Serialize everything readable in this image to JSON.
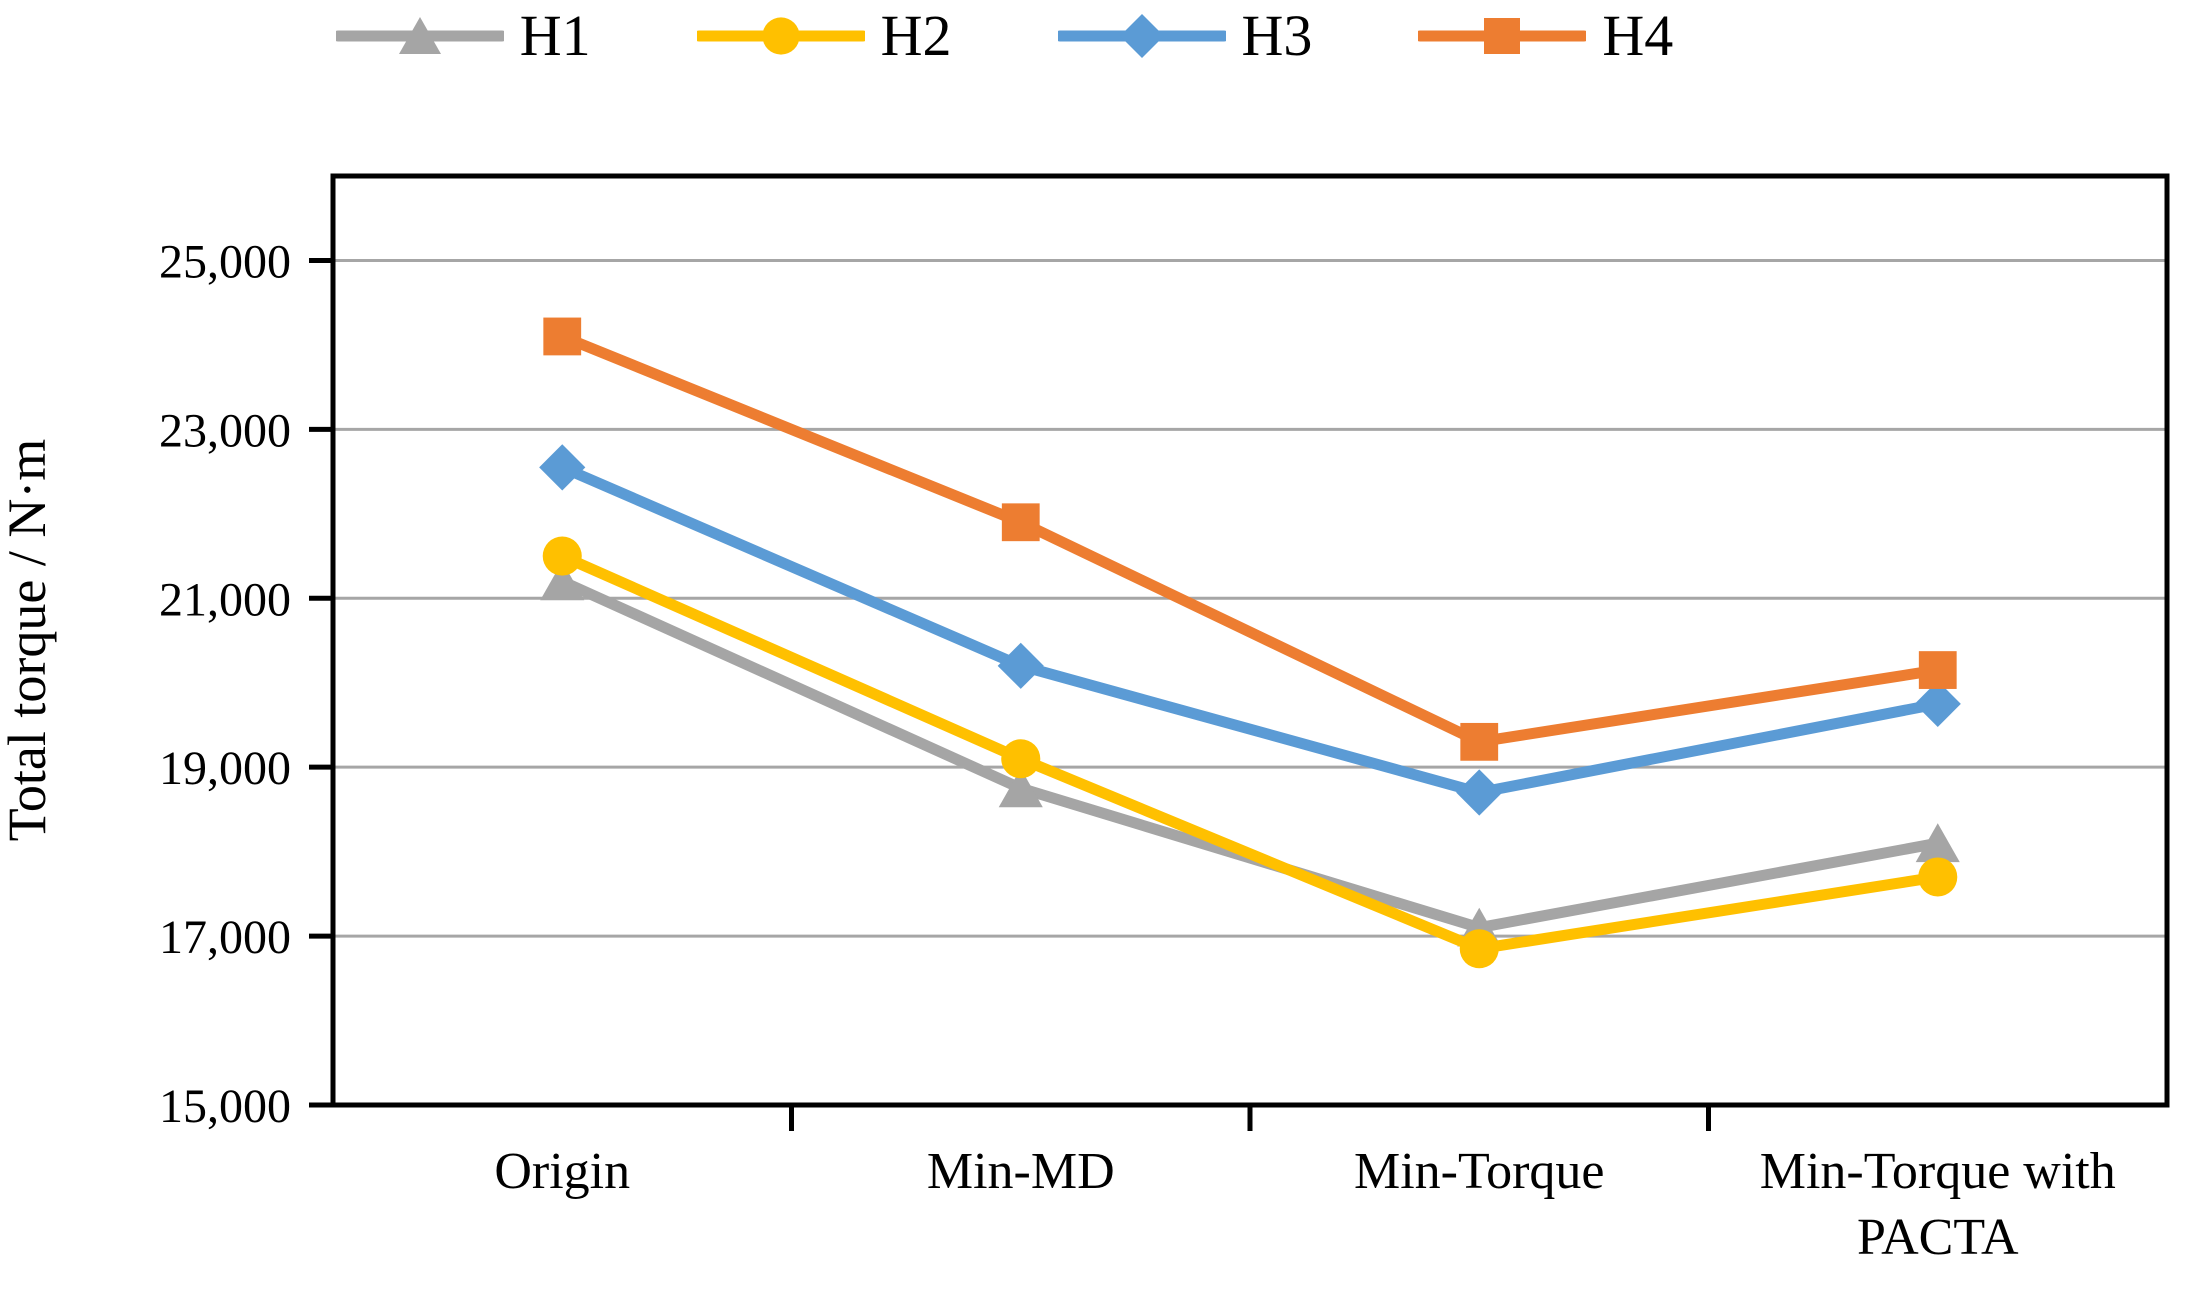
{
  "chart_data": {
    "type": "line",
    "title": "",
    "ylabel": "Total torque / N·m",
    "xlabel": "",
    "categories": [
      "Origin",
      "Min-MD",
      "Min-Torque",
      "Min-Torque with PACTA"
    ],
    "category_label_lines": [
      [
        "Origin"
      ],
      [
        "Min-MD"
      ],
      [
        "Min-Torque"
      ],
      [
        "Min-Torque with",
        "PACTA"
      ]
    ],
    "series": [
      {
        "name": "H1",
        "marker": "triangle",
        "color": "#A5A5A5",
        "values": [
          21200,
          18750,
          17100,
          18100
        ]
      },
      {
        "name": "H2",
        "marker": "circle",
        "color": "#FFC000",
        "values": [
          21500,
          19100,
          16850,
          17700
        ]
      },
      {
        "name": "H3",
        "marker": "diamond",
        "color": "#5B9BD5",
        "values": [
          22550,
          20200,
          18700,
          19750
        ]
      },
      {
        "name": "H4",
        "marker": "square",
        "color": "#ED7D31",
        "values": [
          24100,
          21900,
          19300,
          20150
        ]
      }
    ],
    "ylim": [
      15000,
      26000
    ],
    "yticks": [
      15000,
      17000,
      19000,
      21000,
      23000,
      25000
    ],
    "ytick_labels": [
      "15,000",
      "17,000",
      "19,000",
      "21,000",
      "23,000",
      "25,000"
    ],
    "grid": true,
    "legend_position": "top",
    "colors": {
      "axis": "#000000",
      "gridline": "#A6A6A6",
      "text": "#000000"
    }
  }
}
